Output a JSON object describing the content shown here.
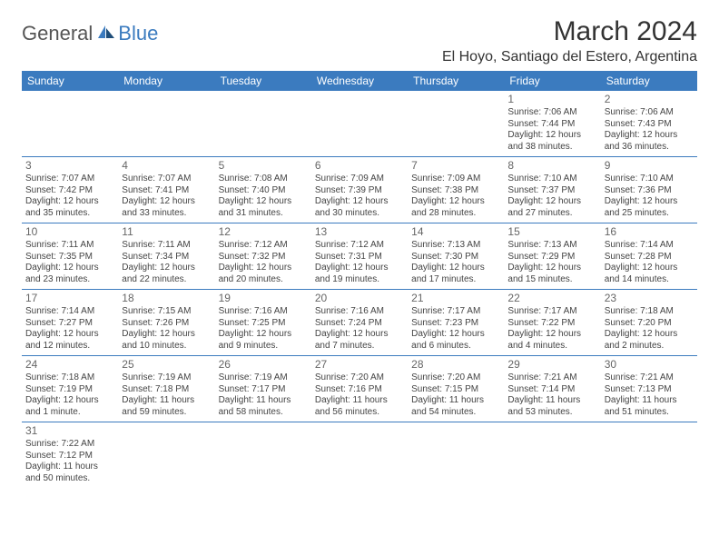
{
  "logo": {
    "general": "General",
    "blue": "Blue"
  },
  "title": "March 2024",
  "location": "El Hoyo, Santiago del Estero, Argentina",
  "colors": {
    "header_bg": "#3b7bbf",
    "header_text": "#ffffff",
    "border": "#3b7bbf",
    "text": "#444444",
    "daynum": "#666666",
    "logo_blue": "#3b7bbf",
    "logo_gray": "#555555"
  },
  "weekdays": [
    "Sunday",
    "Monday",
    "Tuesday",
    "Wednesday",
    "Thursday",
    "Friday",
    "Saturday"
  ],
  "weeks": [
    [
      null,
      null,
      null,
      null,
      null,
      {
        "n": "1",
        "sr": "Sunrise: 7:06 AM",
        "ss": "Sunset: 7:44 PM",
        "d1": "Daylight: 12 hours",
        "d2": "and 38 minutes."
      },
      {
        "n": "2",
        "sr": "Sunrise: 7:06 AM",
        "ss": "Sunset: 7:43 PM",
        "d1": "Daylight: 12 hours",
        "d2": "and 36 minutes."
      }
    ],
    [
      {
        "n": "3",
        "sr": "Sunrise: 7:07 AM",
        "ss": "Sunset: 7:42 PM",
        "d1": "Daylight: 12 hours",
        "d2": "and 35 minutes."
      },
      {
        "n": "4",
        "sr": "Sunrise: 7:07 AM",
        "ss": "Sunset: 7:41 PM",
        "d1": "Daylight: 12 hours",
        "d2": "and 33 minutes."
      },
      {
        "n": "5",
        "sr": "Sunrise: 7:08 AM",
        "ss": "Sunset: 7:40 PM",
        "d1": "Daylight: 12 hours",
        "d2": "and 31 minutes."
      },
      {
        "n": "6",
        "sr": "Sunrise: 7:09 AM",
        "ss": "Sunset: 7:39 PM",
        "d1": "Daylight: 12 hours",
        "d2": "and 30 minutes."
      },
      {
        "n": "7",
        "sr": "Sunrise: 7:09 AM",
        "ss": "Sunset: 7:38 PM",
        "d1": "Daylight: 12 hours",
        "d2": "and 28 minutes."
      },
      {
        "n": "8",
        "sr": "Sunrise: 7:10 AM",
        "ss": "Sunset: 7:37 PM",
        "d1": "Daylight: 12 hours",
        "d2": "and 27 minutes."
      },
      {
        "n": "9",
        "sr": "Sunrise: 7:10 AM",
        "ss": "Sunset: 7:36 PM",
        "d1": "Daylight: 12 hours",
        "d2": "and 25 minutes."
      }
    ],
    [
      {
        "n": "10",
        "sr": "Sunrise: 7:11 AM",
        "ss": "Sunset: 7:35 PM",
        "d1": "Daylight: 12 hours",
        "d2": "and 23 minutes."
      },
      {
        "n": "11",
        "sr": "Sunrise: 7:11 AM",
        "ss": "Sunset: 7:34 PM",
        "d1": "Daylight: 12 hours",
        "d2": "and 22 minutes."
      },
      {
        "n": "12",
        "sr": "Sunrise: 7:12 AM",
        "ss": "Sunset: 7:32 PM",
        "d1": "Daylight: 12 hours",
        "d2": "and 20 minutes."
      },
      {
        "n": "13",
        "sr": "Sunrise: 7:12 AM",
        "ss": "Sunset: 7:31 PM",
        "d1": "Daylight: 12 hours",
        "d2": "and 19 minutes."
      },
      {
        "n": "14",
        "sr": "Sunrise: 7:13 AM",
        "ss": "Sunset: 7:30 PM",
        "d1": "Daylight: 12 hours",
        "d2": "and 17 minutes."
      },
      {
        "n": "15",
        "sr": "Sunrise: 7:13 AM",
        "ss": "Sunset: 7:29 PM",
        "d1": "Daylight: 12 hours",
        "d2": "and 15 minutes."
      },
      {
        "n": "16",
        "sr": "Sunrise: 7:14 AM",
        "ss": "Sunset: 7:28 PM",
        "d1": "Daylight: 12 hours",
        "d2": "and 14 minutes."
      }
    ],
    [
      {
        "n": "17",
        "sr": "Sunrise: 7:14 AM",
        "ss": "Sunset: 7:27 PM",
        "d1": "Daylight: 12 hours",
        "d2": "and 12 minutes."
      },
      {
        "n": "18",
        "sr": "Sunrise: 7:15 AM",
        "ss": "Sunset: 7:26 PM",
        "d1": "Daylight: 12 hours",
        "d2": "and 10 minutes."
      },
      {
        "n": "19",
        "sr": "Sunrise: 7:16 AM",
        "ss": "Sunset: 7:25 PM",
        "d1": "Daylight: 12 hours",
        "d2": "and 9 minutes."
      },
      {
        "n": "20",
        "sr": "Sunrise: 7:16 AM",
        "ss": "Sunset: 7:24 PM",
        "d1": "Daylight: 12 hours",
        "d2": "and 7 minutes."
      },
      {
        "n": "21",
        "sr": "Sunrise: 7:17 AM",
        "ss": "Sunset: 7:23 PM",
        "d1": "Daylight: 12 hours",
        "d2": "and 6 minutes."
      },
      {
        "n": "22",
        "sr": "Sunrise: 7:17 AM",
        "ss": "Sunset: 7:22 PM",
        "d1": "Daylight: 12 hours",
        "d2": "and 4 minutes."
      },
      {
        "n": "23",
        "sr": "Sunrise: 7:18 AM",
        "ss": "Sunset: 7:20 PM",
        "d1": "Daylight: 12 hours",
        "d2": "and 2 minutes."
      }
    ],
    [
      {
        "n": "24",
        "sr": "Sunrise: 7:18 AM",
        "ss": "Sunset: 7:19 PM",
        "d1": "Daylight: 12 hours",
        "d2": "and 1 minute."
      },
      {
        "n": "25",
        "sr": "Sunrise: 7:19 AM",
        "ss": "Sunset: 7:18 PM",
        "d1": "Daylight: 11 hours",
        "d2": "and 59 minutes."
      },
      {
        "n": "26",
        "sr": "Sunrise: 7:19 AM",
        "ss": "Sunset: 7:17 PM",
        "d1": "Daylight: 11 hours",
        "d2": "and 58 minutes."
      },
      {
        "n": "27",
        "sr": "Sunrise: 7:20 AM",
        "ss": "Sunset: 7:16 PM",
        "d1": "Daylight: 11 hours",
        "d2": "and 56 minutes."
      },
      {
        "n": "28",
        "sr": "Sunrise: 7:20 AM",
        "ss": "Sunset: 7:15 PM",
        "d1": "Daylight: 11 hours",
        "d2": "and 54 minutes."
      },
      {
        "n": "29",
        "sr": "Sunrise: 7:21 AM",
        "ss": "Sunset: 7:14 PM",
        "d1": "Daylight: 11 hours",
        "d2": "and 53 minutes."
      },
      {
        "n": "30",
        "sr": "Sunrise: 7:21 AM",
        "ss": "Sunset: 7:13 PM",
        "d1": "Daylight: 11 hours",
        "d2": "and 51 minutes."
      }
    ],
    [
      {
        "n": "31",
        "sr": "Sunrise: 7:22 AM",
        "ss": "Sunset: 7:12 PM",
        "d1": "Daylight: 11 hours",
        "d2": "and 50 minutes."
      },
      null,
      null,
      null,
      null,
      null,
      null
    ]
  ]
}
